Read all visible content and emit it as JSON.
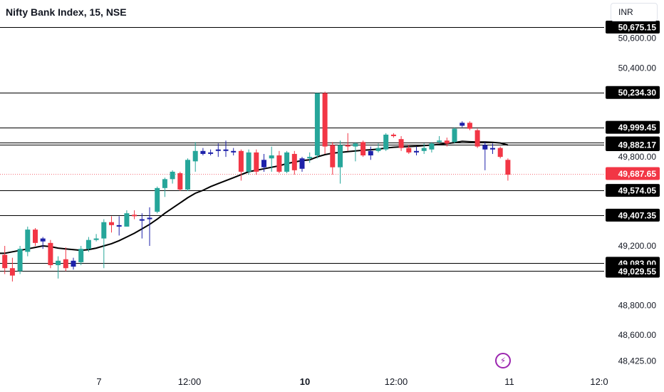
{
  "header": {
    "title": "Nifty Bank Index, 15, NSE",
    "currency_button": "INR"
  },
  "events_button": {
    "icon": "lightning-icon"
  },
  "colors": {
    "up": "#26a69a",
    "down": "#f23645",
    "blue_candle": "#1e22aa",
    "moving_average": "#000000",
    "level_lines": "#000000",
    "last_price": "#f23645",
    "axis_text": "#131722"
  },
  "chart_data": {
    "type": "candlestick",
    "x_tick_labels": [
      "7",
      "12:00",
      "10",
      "12:00",
      "11",
      "12:0"
    ],
    "y_tick_labels": [
      "50,600.00",
      "50,400.00",
      "49,800.00",
      "49,200.00",
      "48,800.00",
      "48,600.00",
      "48,425.00"
    ],
    "y_range": [
      48340,
      50800
    ],
    "horizontal_levels": [
      {
        "label": "50,675.15",
        "value": 50675.15
      },
      {
        "label": "50,234.30",
        "value": 50234.3
      },
      {
        "label": "49,999.45",
        "value": 49999.45
      },
      {
        "label": "49,894.60",
        "value": 49894.6
      },
      {
        "label": "49,882.17",
        "value": 49882.17
      },
      {
        "label": "49,574.05",
        "value": 49574.05
      },
      {
        "label": "49,407.35",
        "value": 49407.35
      },
      {
        "label": "49,083.00",
        "value": 49083.0
      },
      {
        "label": "49,029.55",
        "value": 49029.55
      }
    ],
    "last_price": {
      "label": "49,687.65",
      "value": 49687.65
    },
    "candles": [
      {
        "o": 49280,
        "h": 49300,
        "l": 49110,
        "c": 49150,
        "color": "down"
      },
      {
        "o": 49140,
        "h": 49200,
        "l": 49010,
        "c": 49050,
        "color": "down"
      },
      {
        "o": 49050,
        "h": 49120,
        "l": 48960,
        "c": 49000,
        "color": "down"
      },
      {
        "o": 49030,
        "h": 49200,
        "l": 49010,
        "c": 49180,
        "color": "up"
      },
      {
        "o": 49160,
        "h": 49330,
        "l": 49130,
        "c": 49310,
        "color": "up"
      },
      {
        "o": 49310,
        "h": 49320,
        "l": 49200,
        "c": 49220,
        "color": "down"
      },
      {
        "o": 49230,
        "h": 49260,
        "l": 49180,
        "c": 49250,
        "color": "blue"
      },
      {
        "o": 49220,
        "h": 49240,
        "l": 49050,
        "c": 49070,
        "color": "down"
      },
      {
        "o": 49070,
        "h": 49130,
        "l": 48980,
        "c": 49100,
        "color": "up"
      },
      {
        "o": 49110,
        "h": 49190,
        "l": 49030,
        "c": 49050,
        "color": "down"
      },
      {
        "o": 49060,
        "h": 49120,
        "l": 49040,
        "c": 49100,
        "color": "blue"
      },
      {
        "o": 49090,
        "h": 49200,
        "l": 49070,
        "c": 49180,
        "color": "up"
      },
      {
        "o": 49180,
        "h": 49260,
        "l": 49160,
        "c": 49240,
        "color": "up"
      },
      {
        "o": 49240,
        "h": 49280,
        "l": 49230,
        "c": 49250,
        "color": "up"
      },
      {
        "o": 49250,
        "h": 49380,
        "l": 49050,
        "c": 49360,
        "color": "up"
      },
      {
        "o": 49360,
        "h": 49400,
        "l": 49290,
        "c": 49340,
        "color": "down"
      },
      {
        "o": 49340,
        "h": 49400,
        "l": 49270,
        "c": 49330,
        "color": "blue"
      },
      {
        "o": 49330,
        "h": 49440,
        "l": 49330,
        "c": 49420,
        "color": "up"
      },
      {
        "o": 49410,
        "h": 49440,
        "l": 49380,
        "c": 49400,
        "color": "down"
      },
      {
        "o": 49370,
        "h": 49420,
        "l": 49250,
        "c": 49380,
        "color": "blue"
      },
      {
        "o": 49380,
        "h": 49460,
        "l": 49200,
        "c": 49390,
        "color": "blue"
      },
      {
        "o": 49430,
        "h": 49600,
        "l": 49420,
        "c": 49590,
        "color": "up"
      },
      {
        "o": 49590,
        "h": 49660,
        "l": 49530,
        "c": 49650,
        "color": "up"
      },
      {
        "o": 49650,
        "h": 49710,
        "l": 49620,
        "c": 49700,
        "color": "up"
      },
      {
        "o": 49690,
        "h": 49700,
        "l": 49570,
        "c": 49580,
        "color": "down"
      },
      {
        "o": 49580,
        "h": 49790,
        "l": 49570,
        "c": 49780,
        "color": "up"
      },
      {
        "o": 49770,
        "h": 49900,
        "l": 49700,
        "c": 49840,
        "color": "up"
      },
      {
        "o": 49820,
        "h": 49860,
        "l": 49810,
        "c": 49840,
        "color": "blue"
      },
      {
        "o": 49830,
        "h": 49850,
        "l": 49810,
        "c": 49830,
        "color": "blue"
      },
      {
        "o": 49840,
        "h": 49890,
        "l": 49800,
        "c": 49850,
        "color": "blue"
      },
      {
        "o": 49850,
        "h": 49910,
        "l": 49800,
        "c": 49840,
        "color": "blue"
      },
      {
        "o": 49840,
        "h": 49860,
        "l": 49810,
        "c": 49830,
        "color": "blue"
      },
      {
        "o": 49840,
        "h": 49850,
        "l": 49640,
        "c": 49700,
        "color": "down"
      },
      {
        "o": 49700,
        "h": 49850,
        "l": 49680,
        "c": 49830,
        "color": "up"
      },
      {
        "o": 49830,
        "h": 49850,
        "l": 49680,
        "c": 49700,
        "color": "down"
      },
      {
        "o": 49730,
        "h": 49820,
        "l": 49700,
        "c": 49780,
        "color": "blue"
      },
      {
        "o": 49790,
        "h": 49870,
        "l": 49700,
        "c": 49810,
        "color": "up"
      },
      {
        "o": 49810,
        "h": 49840,
        "l": 49690,
        "c": 49700,
        "color": "down"
      },
      {
        "o": 49700,
        "h": 49840,
        "l": 49690,
        "c": 49830,
        "color": "up"
      },
      {
        "o": 49820,
        "h": 49840,
        "l": 49680,
        "c": 49710,
        "color": "down"
      },
      {
        "o": 49720,
        "h": 49800,
        "l": 49700,
        "c": 49790,
        "color": "blue"
      },
      {
        "o": 49790,
        "h": 49830,
        "l": 49760,
        "c": 49800,
        "color": "up"
      },
      {
        "o": 49810,
        "h": 50230,
        "l": 49790,
        "c": 50230,
        "color": "up"
      },
      {
        "o": 50230,
        "h": 50240,
        "l": 49820,
        "c": 49870,
        "color": "down"
      },
      {
        "o": 49880,
        "h": 49900,
        "l": 49680,
        "c": 49730,
        "color": "down"
      },
      {
        "o": 49730,
        "h": 49910,
        "l": 49620,
        "c": 49880,
        "color": "up"
      },
      {
        "o": 49880,
        "h": 49960,
        "l": 49840,
        "c": 49870,
        "color": "down"
      },
      {
        "o": 49870,
        "h": 49900,
        "l": 49770,
        "c": 49890,
        "color": "up"
      },
      {
        "o": 49900,
        "h": 49910,
        "l": 49800,
        "c": 49810,
        "color": "down"
      },
      {
        "o": 49810,
        "h": 49870,
        "l": 49780,
        "c": 49840,
        "color": "blue"
      },
      {
        "o": 49840,
        "h": 49890,
        "l": 49830,
        "c": 49860,
        "color": "up"
      },
      {
        "o": 49850,
        "h": 49960,
        "l": 49840,
        "c": 49950,
        "color": "up"
      },
      {
        "o": 49950,
        "h": 49960,
        "l": 49930,
        "c": 49940,
        "color": "down"
      },
      {
        "o": 49920,
        "h": 49940,
        "l": 49840,
        "c": 49860,
        "color": "down"
      },
      {
        "o": 49860,
        "h": 49880,
        "l": 49820,
        "c": 49830,
        "color": "down"
      },
      {
        "o": 49830,
        "h": 49870,
        "l": 49810,
        "c": 49840,
        "color": "blue"
      },
      {
        "o": 49840,
        "h": 49890,
        "l": 49820,
        "c": 49860,
        "color": "up"
      },
      {
        "o": 49850,
        "h": 49900,
        "l": 49830,
        "c": 49890,
        "color": "up"
      },
      {
        "o": 49900,
        "h": 49940,
        "l": 49890,
        "c": 49910,
        "color": "up"
      },
      {
        "o": 49910,
        "h": 49930,
        "l": 49870,
        "c": 49890,
        "color": "down"
      },
      {
        "o": 49900,
        "h": 50000,
        "l": 49890,
        "c": 49990,
        "color": "up"
      },
      {
        "o": 50010,
        "h": 50040,
        "l": 50000,
        "c": 50030,
        "color": "blue"
      },
      {
        "o": 50030,
        "h": 50040,
        "l": 49980,
        "c": 49990,
        "color": "down"
      },
      {
        "o": 49980,
        "h": 49990,
        "l": 49860,
        "c": 49870,
        "color": "down"
      },
      {
        "o": 49880,
        "h": 49900,
        "l": 49710,
        "c": 49850,
        "color": "blue"
      },
      {
        "o": 49850,
        "h": 49890,
        "l": 49820,
        "c": 49860,
        "color": "blue"
      },
      {
        "o": 49860,
        "h": 49870,
        "l": 49790,
        "c": 49800,
        "color": "down"
      },
      {
        "o": 49780,
        "h": 49790,
        "l": 49640,
        "c": 49680,
        "color": "down"
      }
    ],
    "moving_average": [
      49150,
      49150,
      49160,
      49170,
      49180,
      49190,
      49200,
      49195,
      49185,
      49180,
      49175,
      49170,
      49175,
      49185,
      49200,
      49215,
      49235,
      49260,
      49285,
      49315,
      49345,
      49380,
      49420,
      49455,
      49490,
      49525,
      49555,
      49575,
      49600,
      49620,
      49640,
      49660,
      49680,
      49700,
      49710,
      49720,
      49730,
      49740,
      49755,
      49765,
      49775,
      49780,
      49800,
      49815,
      49825,
      49830,
      49835,
      49840,
      49845,
      49848,
      49852,
      49860,
      49865,
      49868,
      49870,
      49872,
      49876,
      49880,
      49884,
      49890,
      49896,
      49905,
      49902,
      49900,
      49900,
      49898,
      49894,
      49880
    ]
  }
}
